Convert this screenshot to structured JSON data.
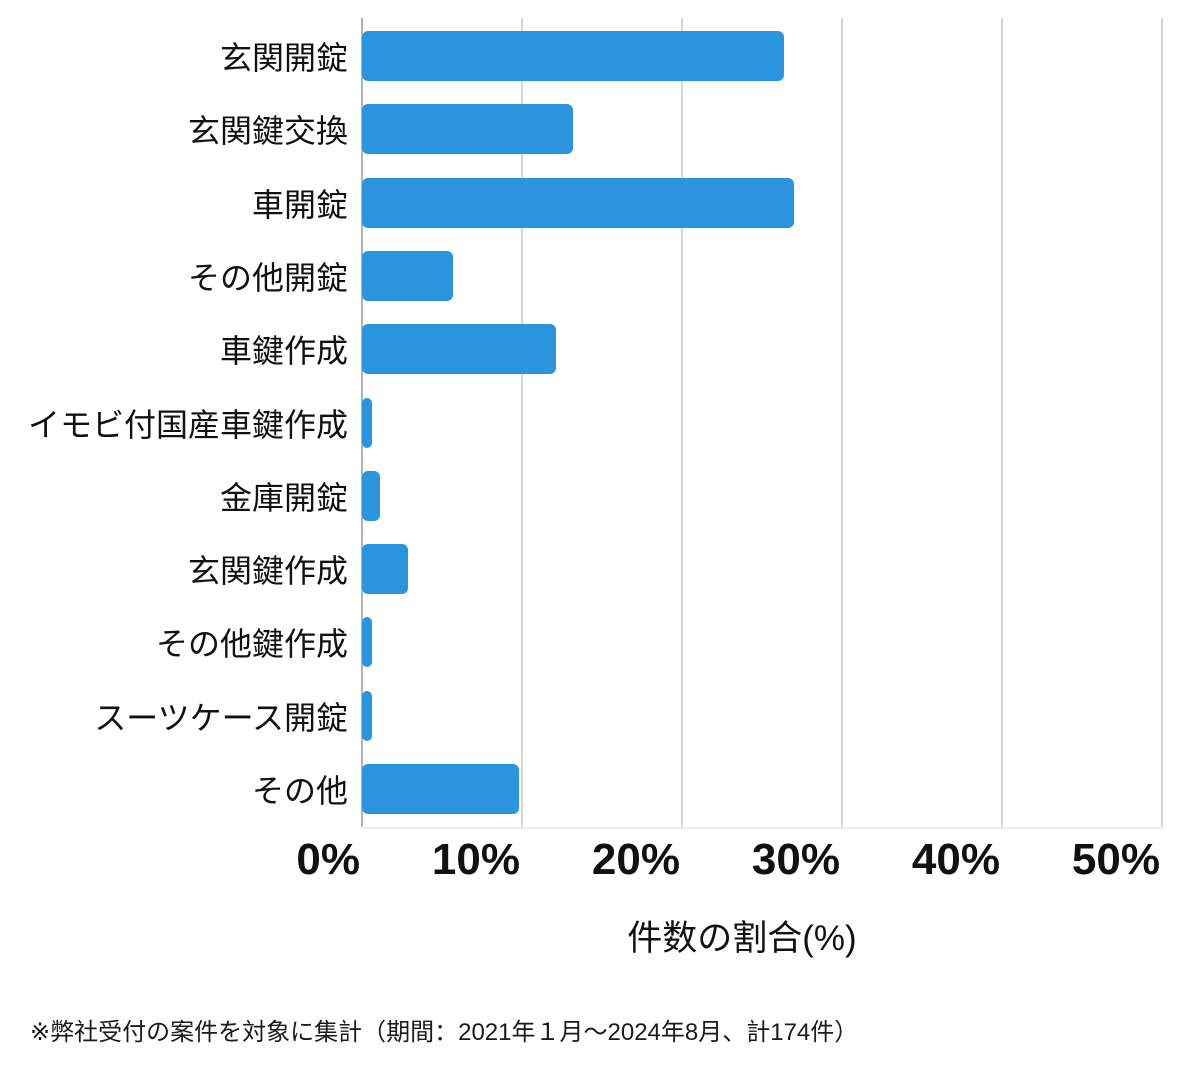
{
  "chart_data": {
    "type": "bar",
    "orientation": "horizontal",
    "title": "",
    "categories": [
      "玄関開錠",
      "玄関鍵交換",
      "車開錠",
      "その他開錠",
      "車鍵作成",
      "イモビ付国産車鍵作成",
      "金庫開錠",
      "玄関鍵作成",
      "その他鍵作成",
      "スーツケース開錠",
      "その他"
    ],
    "values": [
      26.4,
      13.2,
      27.0,
      5.7,
      12.1,
      0.6,
      1.1,
      2.9,
      0.6,
      0.6,
      9.8
    ],
    "xlabel": "件数の割合(%)",
    "xlim": [
      0,
      50
    ],
    "xticks": [
      0,
      10,
      20,
      30,
      40,
      50
    ],
    "xtick_labels": [
      "0%",
      "10%",
      "20%",
      "30%",
      "40%",
      "50%"
    ],
    "grid": "vertical",
    "legend_position": "none",
    "footnote": "※弊社受付の案件を対象に集計（期間：2021年１月～2024年8月、計174件）",
    "colors": {
      "bar": "#2a94df",
      "gridline": "#d6d6d6",
      "axis_line": "#b3b3b3",
      "text": "#111111",
      "background": "#ffffff"
    }
  }
}
